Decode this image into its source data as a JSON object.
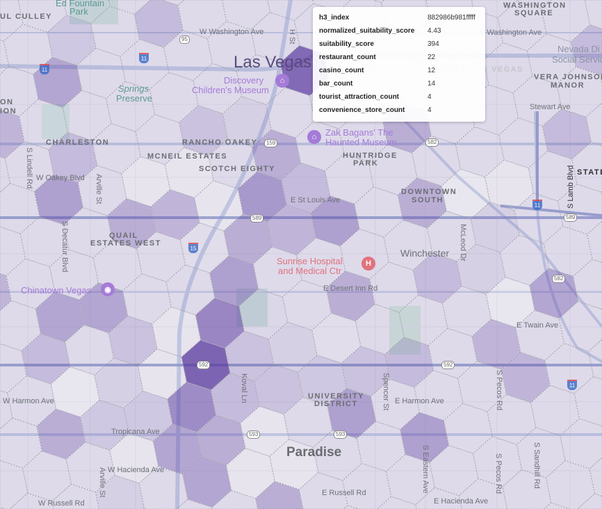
{
  "tooltip": {
    "rows": [
      {
        "key": "h3_index",
        "value": "882986b981fffff"
      },
      {
        "key": "normalized_suitability_score",
        "value": "4.43"
      },
      {
        "key": "suitability_score",
        "value": "394"
      },
      {
        "key": "restaurant_count",
        "value": "22"
      },
      {
        "key": "casino_count",
        "value": "12"
      },
      {
        "key": "bar_count",
        "value": "14"
      },
      {
        "key": "tourist_attraction_count",
        "value": "4"
      },
      {
        "key": "convenience_store_count",
        "value": "4"
      }
    ]
  },
  "hex_layer": {
    "fill_color": "#58389f",
    "default_level": 0.12,
    "cells": [
      [
        0,
        0,
        1.0
      ],
      [
        0,
        1,
        0.75
      ],
      [
        0,
        -1,
        0.7
      ],
      [
        0,
        2,
        0.55
      ],
      [
        0,
        -2,
        0.5
      ],
      [
        1,
        -2,
        0.45
      ],
      [
        1,
        -3,
        0.5
      ],
      [
        0,
        3,
        0.45
      ],
      [
        0,
        4,
        0.6
      ],
      [
        0,
        5,
        0.45
      ],
      [
        1,
        3,
        0.4
      ],
      [
        1,
        4,
        0.35
      ],
      [
        0,
        7,
        0.95
      ],
      [
        -6,
        8,
        0.5
      ],
      [
        -5,
        5,
        0.55
      ],
      [
        -5,
        6,
        0.35
      ],
      [
        2,
        3,
        0.55
      ],
      [
        3,
        5,
        0.45
      ],
      [
        6,
        -3,
        0.55
      ],
      [
        8,
        0,
        0.5
      ],
      [
        -4,
        2,
        0.5
      ],
      [
        -3,
        2,
        0.5
      ],
      [
        4,
        -2,
        0.55
      ],
      [
        3,
        -4,
        0.45
      ],
      [
        -3,
        -1,
        0.45
      ],
      [
        -7,
        7,
        0.4
      ],
      [
        -6,
        3,
        0.4
      ],
      [
        4,
        -1,
        0.3
      ],
      [
        4,
        3,
        0.45
      ],
      [
        7,
        4,
        0.35
      ],
      [
        7,
        6,
        0.35
      ],
      [
        7,
        -1,
        0.4
      ],
      [
        8,
        -2,
        0.4
      ],
      [
        5,
        -1,
        0.35
      ],
      [
        5,
        1,
        0.35
      ],
      [
        6,
        1,
        0.2
      ],
      [
        6,
        2,
        0.2
      ],
      [
        7,
        0,
        0.03
      ],
      [
        5,
        3,
        0.03
      ],
      [
        6,
        3,
        0.05
      ],
      [
        -4,
        1,
        0.35
      ],
      [
        -2,
        1,
        0.3
      ],
      [
        3,
        1,
        0.45
      ],
      [
        1,
        -1,
        0.35
      ],
      [
        1,
        0,
        0.3
      ],
      [
        1,
        1,
        0.15
      ],
      [
        2,
        -1,
        0.3
      ],
      [
        2,
        -2,
        0.05
      ],
      [
        2,
        -3,
        0.05
      ],
      [
        3,
        -3,
        0.05
      ],
      [
        2,
        0,
        0.2
      ],
      [
        3,
        0,
        0.1
      ],
      [
        3,
        -1,
        0.25
      ],
      [
        -1,
        0,
        0.05
      ],
      [
        -1,
        1,
        0.05
      ],
      [
        -1,
        -1,
        0.25
      ],
      [
        -1,
        -2,
        0.05
      ],
      [
        -1,
        -3,
        0.2
      ],
      [
        -2,
        0,
        0.2
      ],
      [
        -2,
        -1,
        0.25
      ],
      [
        -3,
        0,
        0.03
      ],
      [
        -2,
        4,
        0.4
      ],
      [
        -3,
        4,
        0.45
      ],
      [
        -3,
        5,
        0.05
      ],
      [
        -2,
        5,
        0.05
      ],
      [
        -2,
        6,
        0.3
      ],
      [
        -1,
        6,
        0.2
      ],
      [
        -4,
        9,
        0.35
      ],
      [
        -6,
        9,
        0.25
      ],
      [
        -1,
        3,
        0.1
      ],
      [
        -1,
        4,
        0.05
      ]
    ]
  },
  "labels": {
    "ed_fountain_1": "Ed Fountain",
    "ed_fountain_2": "Park",
    "paul_culley": "UL CULLEY",
    "w_washington": "W Washington Ave",
    "e_washington": "E Washington Ave",
    "washington_sq_1": "WASHINGTON",
    "washington_sq_2": "SQUARE",
    "h_st": "H St",
    "nevada_1": "Nevada Di",
    "nevada_2": "Social Services",
    "east_lv": "EAST LAS VEGAS",
    "vera_1": "VERA JOHNSON",
    "vera_2": "MANOR",
    "stewart": "Stewart Ave",
    "state": "STATE",
    "lamb": "S Lamb Blvd",
    "springs_1": "Springs",
    "springs_2": "Preserve",
    "discovery_1": "Discovery",
    "discovery_2": "Children's Museum",
    "las_vegas": "Las Vegas",
    "left_1": "ON",
    "left_2": "ION",
    "charleston": "CHARLESTON",
    "rancho": "RANCHO OAKEY",
    "mcneil": "MCNEIL ESTATES",
    "scotch": "SCOTCH EIGHTY",
    "zak_1": "Zak Bagans' The",
    "zak_2": "Haunted Museum",
    "huntridge_1": "HUNTRIDGE",
    "huntridge_2": "PARK",
    "lindell": "S Lindell Rd",
    "w_oakey": "W Oakey Blvd",
    "arville_1": "Arville St",
    "st_louis": "E St Louis Ave",
    "downtown_1": "DOWNTOWN",
    "downtown_2": "SOUTH",
    "quail_1": "QUAIL",
    "quail_2": "ESTATES WEST",
    "decatur": "S Decatur Blvd",
    "mcleod": "McLeod Dr",
    "winchester": "Winchester",
    "sunrise_1": "Sunrise Hospital",
    "sunrise_2": "and Medical Ctr",
    "chinatown": "Chinatown Vegas",
    "desert_inn": "E Desert Inn Rd",
    "twain": "E Twain Ave",
    "pecos_1": "S Pecos Rd",
    "spencer": "Spencer St",
    "koval": "Koval Ln",
    "w_harmon": "W Harmon Ave",
    "e_harmon": "E Harmon Ave",
    "univ_1": "UNIVERSITY",
    "univ_2": "DISTRICT",
    "tropicana": "Tropicana Ave",
    "paradise": "Paradise",
    "w_hacienda": "W Hacienda Ave",
    "arville_2": "Arville St",
    "e_russell": "E Russell Rd",
    "eastern": "S Eastern Ave",
    "pecos_2": "S Pecos Rd",
    "sandhill": "S Sandhill Rd",
    "e_hacienda": "E Hacienda Ave",
    "w_russell": "W Russell Rd"
  },
  "shields": {
    "bus95": "95",
    "r159a": "159",
    "r582a": "582",
    "r589a": "589",
    "r589b": "589",
    "r582b": "582",
    "r592a": "592",
    "r592b": "592",
    "r593a": "593",
    "r593b": "593",
    "i11a": "11",
    "i11b": "11",
    "i11c": "11",
    "i11d": "11",
    "i15": "15"
  },
  "pois": {
    "hospital": "H"
  }
}
